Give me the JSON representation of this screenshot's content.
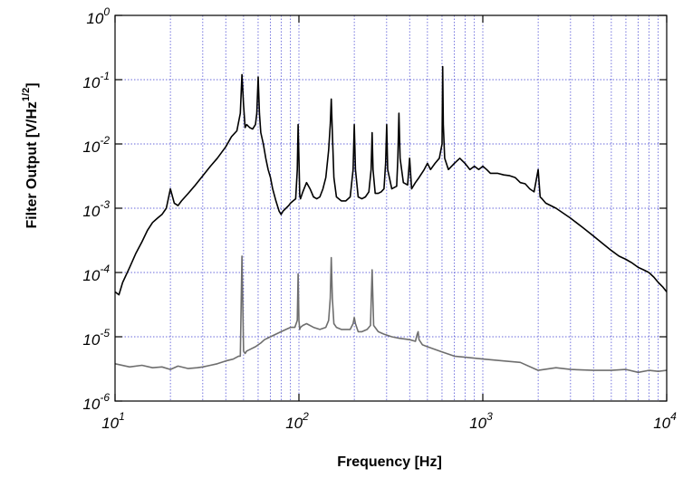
{
  "chart_data": {
    "type": "line",
    "xlabel": "Frequency [Hz]",
    "ylabel": {
      "main": "Filter Output [V/Hz",
      "sup": "1/2",
      "end": "]"
    },
    "x_scale": "log",
    "y_scale": "log",
    "xlim": [
      10,
      10000
    ],
    "ylim": [
      1e-06,
      1
    ],
    "grid": true,
    "x_ticks": [
      {
        "base": "10",
        "exp": "1",
        "value": 10
      },
      {
        "base": "10",
        "exp": "2",
        "value": 100
      },
      {
        "base": "10",
        "exp": "3",
        "value": 1000
      },
      {
        "base": "10",
        "exp": "4",
        "value": 10000
      }
    ],
    "y_ticks": [
      {
        "base": "10",
        "exp": "-6",
        "value": 1e-06
      },
      {
        "base": "10",
        "exp": "-5",
        "value": 1e-05
      },
      {
        "base": "10",
        "exp": "-4",
        "value": 0.0001
      },
      {
        "base": "10",
        "exp": "-3",
        "value": 0.001
      },
      {
        "base": "10",
        "exp": "-2",
        "value": 0.01
      },
      {
        "base": "10",
        "exp": "-1",
        "value": 0.1
      },
      {
        "base": "10",
        "exp": "0",
        "value": 1
      }
    ],
    "series": [
      {
        "color": "#000000",
        "x": [
          10,
          10.5,
          11,
          12,
          13,
          14,
          15,
          16,
          17,
          18,
          19,
          20,
          21,
          22,
          23,
          25,
          27,
          30,
          33,
          36,
          40,
          43,
          46,
          48,
          49,
          50,
          51,
          52,
          54,
          56,
          58,
          59,
          60,
          61,
          62,
          64,
          66,
          68,
          70,
          72,
          75,
          78,
          80,
          82,
          85,
          88,
          90,
          93,
          96,
          98,
          99,
          100,
          101,
          102,
          105,
          110,
          115,
          120,
          125,
          130,
          135,
          140,
          145,
          148,
          150,
          152,
          155,
          160,
          170,
          180,
          190,
          197,
          200,
          203,
          210,
          220,
          230,
          240,
          247,
          250,
          253,
          260,
          270,
          280,
          290,
          296,
          300,
          304,
          320,
          340,
          345,
          350,
          355,
          370,
          390,
          400,
          410,
          430,
          450,
          480,
          500,
          520,
          550,
          580,
          600,
          605,
          610,
          620,
          650,
          700,
          750,
          800,
          850,
          900,
          950,
          1000,
          1050,
          1100,
          1200,
          1300,
          1400,
          1500,
          1600,
          1700,
          1800,
          1900,
          2000,
          2050,
          2100,
          2200,
          2500,
          3000,
          3500,
          4000,
          4500,
          5000,
          5500,
          6000,
          6500,
          7000,
          7500,
          8000,
          8500,
          9000,
          9500,
          10000
        ],
        "y": [
          5e-05,
          4.5e-05,
          7e-05,
          0.00012,
          0.0002,
          0.0003,
          0.00045,
          0.0006,
          0.0007,
          0.0008,
          0.001,
          0.002,
          0.0012,
          0.0011,
          0.0013,
          0.0017,
          0.0022,
          0.0032,
          0.0045,
          0.006,
          0.009,
          0.013,
          0.016,
          0.03,
          0.12,
          0.04,
          0.018,
          0.02,
          0.018,
          0.017,
          0.02,
          0.03,
          0.11,
          0.03,
          0.015,
          0.01,
          0.006,
          0.004,
          0.003,
          0.002,
          0.0013,
          0.0009,
          0.0008,
          0.0009,
          0.001,
          0.0011,
          0.0012,
          0.0013,
          0.0014,
          0.004,
          0.02,
          0.006,
          0.0016,
          0.0014,
          0.0018,
          0.0025,
          0.002,
          0.0015,
          0.0014,
          0.0015,
          0.002,
          0.003,
          0.008,
          0.02,
          0.05,
          0.015,
          0.003,
          0.0015,
          0.0013,
          0.0013,
          0.0015,
          0.004,
          0.02,
          0.004,
          0.0015,
          0.0014,
          0.0015,
          0.0018,
          0.004,
          0.015,
          0.004,
          0.0017,
          0.0017,
          0.0018,
          0.002,
          0.005,
          0.02,
          0.004,
          0.002,
          0.0022,
          0.006,
          0.03,
          0.006,
          0.0025,
          0.0023,
          0.006,
          0.002,
          0.0025,
          0.003,
          0.004,
          0.005,
          0.004,
          0.005,
          0.006,
          0.01,
          0.16,
          0.02,
          0.006,
          0.004,
          0.005,
          0.006,
          0.005,
          0.004,
          0.0045,
          0.004,
          0.0045,
          0.004,
          0.0035,
          0.0035,
          0.0033,
          0.0032,
          0.003,
          0.0025,
          0.0024,
          0.002,
          0.0018,
          0.004,
          0.0015,
          0.0014,
          0.0012,
          0.001,
          0.0007,
          0.0005,
          0.00037,
          0.00028,
          0.00022,
          0.00018,
          0.00016,
          0.00014,
          0.00012,
          0.00011,
          0.0001,
          8.5e-05,
          7e-05,
          6e-05,
          5e-05
        ]
      },
      {
        "color": "#6e6e6e",
        "x": [
          10,
          12,
          14,
          16,
          18,
          20,
          22,
          25,
          28,
          30,
          33,
          36,
          40,
          44,
          47,
          48,
          49,
          50,
          51,
          52,
          55,
          58,
          60,
          62,
          65,
          70,
          75,
          80,
          85,
          90,
          95,
          98,
          99,
          100,
          101,
          102,
          105,
          110,
          120,
          130,
          140,
          145,
          148,
          150,
          152,
          155,
          160,
          170,
          180,
          190,
          197,
          200,
          203,
          210,
          220,
          235,
          245,
          250,
          255,
          270,
          290,
          320,
          350,
          400,
          430,
          440,
          445,
          450,
          470,
          500,
          600,
          700,
          800,
          1000,
          1300,
          1600,
          2000,
          2500,
          3000,
          4000,
          5000,
          6000,
          7000,
          8000,
          9000,
          10000
        ],
        "y": [
          3.8e-06,
          3.4e-06,
          3.6e-06,
          3.3e-06,
          3.4e-06,
          3.1e-06,
          3.5e-06,
          3.2e-06,
          3.3e-06,
          3.4e-06,
          3.6e-06,
          3.8e-06,
          4.2e-06,
          4.5e-06,
          5e-06,
          5e-06,
          0.00018,
          6e-06,
          5.5e-06,
          6e-06,
          6.5e-06,
          7e-06,
          7.5e-06,
          8e-06,
          9e-06,
          1e-05,
          1.1e-05,
          1.2e-05,
          1.3e-05,
          1.4e-05,
          1.4e-05,
          1.8e-05,
          9.5e-05,
          1.8e-05,
          1.3e-05,
          1.4e-05,
          1.5e-05,
          1.6e-05,
          1.4e-05,
          1.3e-05,
          1.4e-05,
          1.8e-05,
          4e-05,
          0.00017,
          4e-05,
          1.6e-05,
          1.4e-05,
          1.3e-05,
          1.3e-05,
          1.3e-05,
          1.6e-05,
          2e-05,
          1.6e-05,
          1.2e-05,
          1.2e-05,
          1.3e-05,
          1.5e-05,
          0.00011,
          1.5e-05,
          1.2e-05,
          1.1e-05,
          1e-05,
          9.5e-06,
          9e-06,
          8.5e-06,
          1.1e-05,
          1.2e-05,
          9e-06,
          7.5e-06,
          7e-06,
          5.8e-06,
          5e-06,
          4.8e-06,
          4.5e-06,
          4.2e-06,
          4e-06,
          3e-06,
          3.3e-06,
          3.1e-06,
          3e-06,
          3e-06,
          3.1e-06,
          2.8e-06,
          3e-06,
          2.9e-06,
          3e-06
        ]
      }
    ]
  }
}
